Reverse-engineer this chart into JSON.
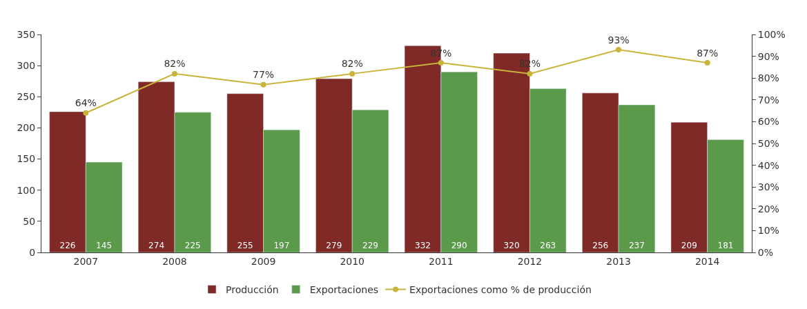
{
  "chart_data": {
    "type": "bar",
    "categories": [
      "2007",
      "2008",
      "2009",
      "2010",
      "2011",
      "2012",
      "2013",
      "2014"
    ],
    "series": [
      {
        "name": "Producción",
        "color": "#7f2a27",
        "values": [
          226,
          274,
          255,
          279,
          332,
          320,
          256,
          209
        ],
        "value_labels": [
          "226",
          "274",
          "255",
          "279",
          "332",
          "320",
          "256",
          "209"
        ]
      },
      {
        "name": "Exportaciones",
        "color": "#5a9a4a",
        "values": [
          145,
          225,
          197,
          229,
          290,
          263,
          237,
          181
        ],
        "value_labels": [
          "145",
          "225",
          "197",
          "229",
          "290",
          "263",
          "237",
          "181"
        ]
      },
      {
        "name": "Exportaciones como % de producción",
        "type": "line",
        "axis": "y2",
        "color": "#c9b43a",
        "marker": "circle",
        "values": [
          64,
          82,
          77,
          82,
          87,
          82,
          93,
          87
        ],
        "value_labels": [
          "64%",
          "82%",
          "77%",
          "82%",
          "87%",
          "82%",
          "93%",
          "87%"
        ]
      }
    ],
    "ylim": [
      0,
      350
    ],
    "yticks": [
      0,
      50,
      100,
      150,
      200,
      250,
      300,
      350
    ],
    "y2lim": [
      0,
      100
    ],
    "y2ticks": [
      {
        "value": 0,
        "label": "0%"
      },
      {
        "value": 10,
        "label": "10%"
      },
      {
        "value": 20,
        "label": "20%"
      },
      {
        "value": 30,
        "label": "30%"
      },
      {
        "value": 40,
        "label": "40%"
      },
      {
        "value": 50,
        "label": "50%"
      },
      {
        "value": 60,
        "label": "60%"
      },
      {
        "value": 70,
        "label": "70%"
      },
      {
        "value": 80,
        "label": "80%"
      },
      {
        "value": 90,
        "label": "90%"
      },
      {
        "value": 100,
        "label": "100%"
      }
    ],
    "legend": "bottom"
  }
}
